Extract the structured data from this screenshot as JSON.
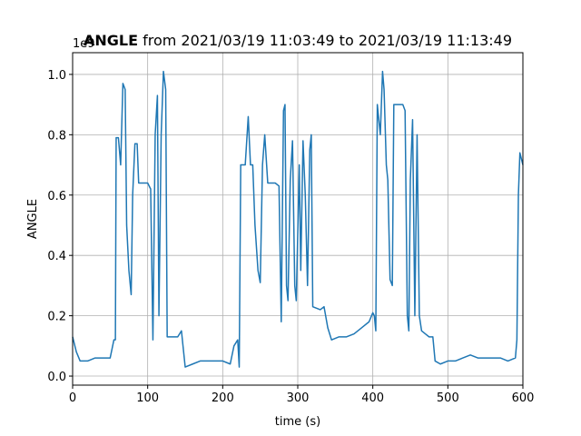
{
  "chart_data": {
    "type": "line",
    "title": {
      "bold": "ANGLE",
      "rest": "from 2021/03/19 11:03:49 to 2021/03/19 11:13:49"
    },
    "x_label": "time (s)",
    "y_label": "ANGLE",
    "y_offset_text": "1e9",
    "xlim": [
      0,
      600
    ],
    "xticks": [
      0,
      100,
      200,
      300,
      400,
      500,
      600
    ],
    "ylim": [
      -0.03,
      1.072
    ],
    "yticks": [
      {
        "value": 0,
        "label": "0.0"
      },
      0.2,
      0.4,
      0.6,
      0.8,
      {
        "value": 1,
        "label": "1.0"
      }
    ],
    "grid": true,
    "series": [
      {
        "color": "#1f77b4",
        "x": [
          0,
          5,
          10,
          20,
          30,
          40,
          50,
          55,
          57,
          58,
          61,
          64,
          67,
          70,
          72,
          75,
          78,
          80,
          83,
          86,
          88,
          95,
          100,
          104,
          107,
          110,
          113,
          115,
          118,
          121,
          124,
          126,
          130,
          140,
          145,
          150,
          160,
          170,
          180,
          190,
          200,
          210,
          215,
          220,
          222,
          224,
          230,
          234,
          237,
          240,
          243,
          247,
          250,
          253,
          256,
          260,
          270,
          275,
          278,
          281,
          283,
          285,
          287,
          290,
          293,
          296,
          298,
          302,
          304,
          307,
          310,
          313,
          316,
          318,
          320,
          330,
          335,
          340,
          345,
          355,
          365,
          375,
          385,
          395,
          400,
          402,
          404,
          406,
          410,
          413,
          415,
          418,
          420,
          423,
          426,
          428,
          435,
          440,
          443,
          446,
          448,
          450,
          453,
          456,
          459,
          462,
          465,
          470,
          475,
          480,
          483,
          490,
          500,
          510,
          520,
          530,
          540,
          550,
          560,
          570,
          580,
          590,
          592,
          594,
          596,
          600
        ],
        "values": [
          0.13,
          0.08,
          0.05,
          0.05,
          0.06,
          0.06,
          0.06,
          0.12,
          0.12,
          0.79,
          0.79,
          0.7,
          0.97,
          0.95,
          0.5,
          0.35,
          0.27,
          0.6,
          0.77,
          0.77,
          0.64,
          0.64,
          0.64,
          0.62,
          0.12,
          0.8,
          0.93,
          0.2,
          0.8,
          1.01,
          0.95,
          0.13,
          0.13,
          0.13,
          0.15,
          0.03,
          0.04,
          0.05,
          0.05,
          0.05,
          0.05,
          0.04,
          0.1,
          0.12,
          0.03,
          0.7,
          0.7,
          0.86,
          0.7,
          0.7,
          0.5,
          0.35,
          0.31,
          0.7,
          0.8,
          0.64,
          0.64,
          0.63,
          0.18,
          0.88,
          0.9,
          0.3,
          0.25,
          0.65,
          0.78,
          0.3,
          0.25,
          0.7,
          0.35,
          0.78,
          0.6,
          0.3,
          0.75,
          0.8,
          0.23,
          0.22,
          0.23,
          0.16,
          0.12,
          0.13,
          0.13,
          0.14,
          0.16,
          0.18,
          0.21,
          0.2,
          0.15,
          0.9,
          0.8,
          1.01,
          0.95,
          0.7,
          0.65,
          0.32,
          0.3,
          0.9,
          0.9,
          0.9,
          0.88,
          0.2,
          0.15,
          0.65,
          0.85,
          0.2,
          0.8,
          0.2,
          0.15,
          0.14,
          0.13,
          0.13,
          0.05,
          0.04,
          0.05,
          0.05,
          0.06,
          0.07,
          0.06,
          0.06,
          0.06,
          0.06,
          0.05,
          0.06,
          0.12,
          0.6,
          0.74,
          0.7
        ]
      }
    ]
  }
}
